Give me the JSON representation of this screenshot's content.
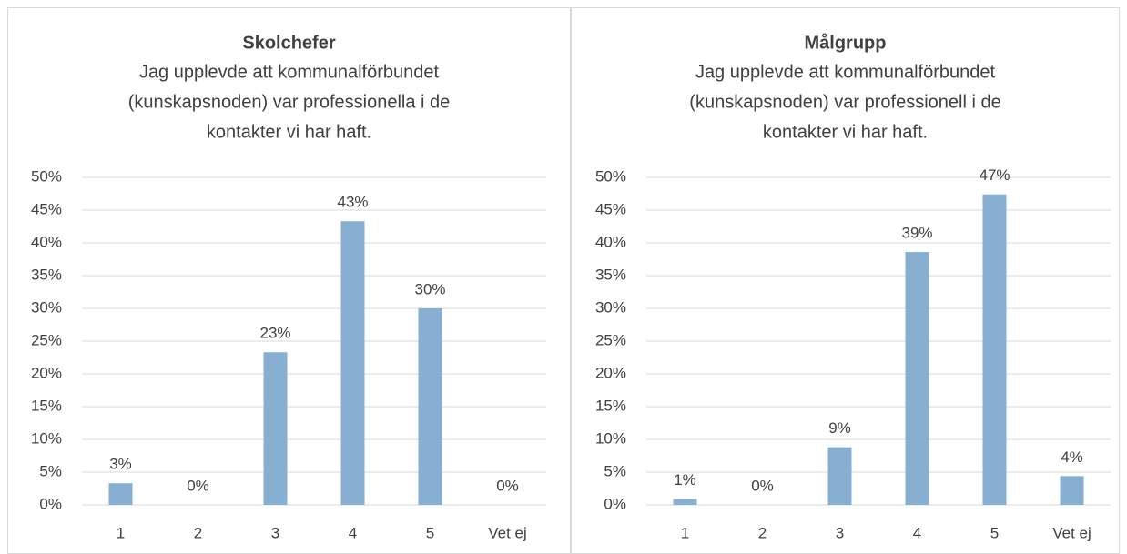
{
  "chart_data": [
    {
      "type": "bar",
      "title": "Skolchefer",
      "subtitle": [
        "Jag upplevde att kommunalförbundet",
        "(kunskapsnoden) var professionella i de",
        "kontakter vi har haft."
      ],
      "categories": [
        "1",
        "2",
        "3",
        "4",
        "5",
        "Vet ej"
      ],
      "values": [
        3.3,
        0,
        23.3,
        43.3,
        30,
        0
      ],
      "value_labels": [
        "3%",
        "0%",
        "23%",
        "43%",
        "30%",
        "0%"
      ],
      "color": "#86afd2",
      "ylim": [
        0,
        50
      ],
      "yticks": [
        {
          "value": 0,
          "label": "0%"
        },
        {
          "value": 5,
          "label": "5%"
        },
        {
          "value": 10,
          "label": "10%"
        },
        {
          "value": 15,
          "label": "15%"
        },
        {
          "value": 20,
          "label": "20%"
        },
        {
          "value": 25,
          "label": "25%"
        },
        {
          "value": 30,
          "label": "30%"
        },
        {
          "value": 35,
          "label": "35%"
        },
        {
          "value": 40,
          "label": "40%"
        },
        {
          "value": 45,
          "label": "45%"
        },
        {
          "value": 50,
          "label": "50%"
        }
      ],
      "grid": true
    },
    {
      "type": "bar",
      "title": "Målgrupp",
      "subtitle": [
        "Jag upplevde att kommunalförbundet",
        "(kunskapsnoden) var professionell i de",
        "kontakter vi har haft."
      ],
      "categories": [
        "1",
        "2",
        "3",
        "4",
        "5",
        "Vet ej"
      ],
      "values": [
        0.9,
        0,
        8.8,
        38.6,
        47.4,
        4.4
      ],
      "value_labels": [
        "1%",
        "0%",
        "9%",
        "39%",
        "47%",
        "4%"
      ],
      "color": "#86afd2",
      "ylim": [
        0,
        50
      ],
      "yticks": [
        {
          "value": 0,
          "label": "0%"
        },
        {
          "value": 5,
          "label": "5%"
        },
        {
          "value": 10,
          "label": "10%"
        },
        {
          "value": 15,
          "label": "15%"
        },
        {
          "value": 20,
          "label": "20%"
        },
        {
          "value": 25,
          "label": "25%"
        },
        {
          "value": 30,
          "label": "30%"
        },
        {
          "value": 35,
          "label": "35%"
        },
        {
          "value": 40,
          "label": "40%"
        },
        {
          "value": 45,
          "label": "45%"
        },
        {
          "value": 50,
          "label": "50%"
        }
      ],
      "grid": true
    }
  ]
}
